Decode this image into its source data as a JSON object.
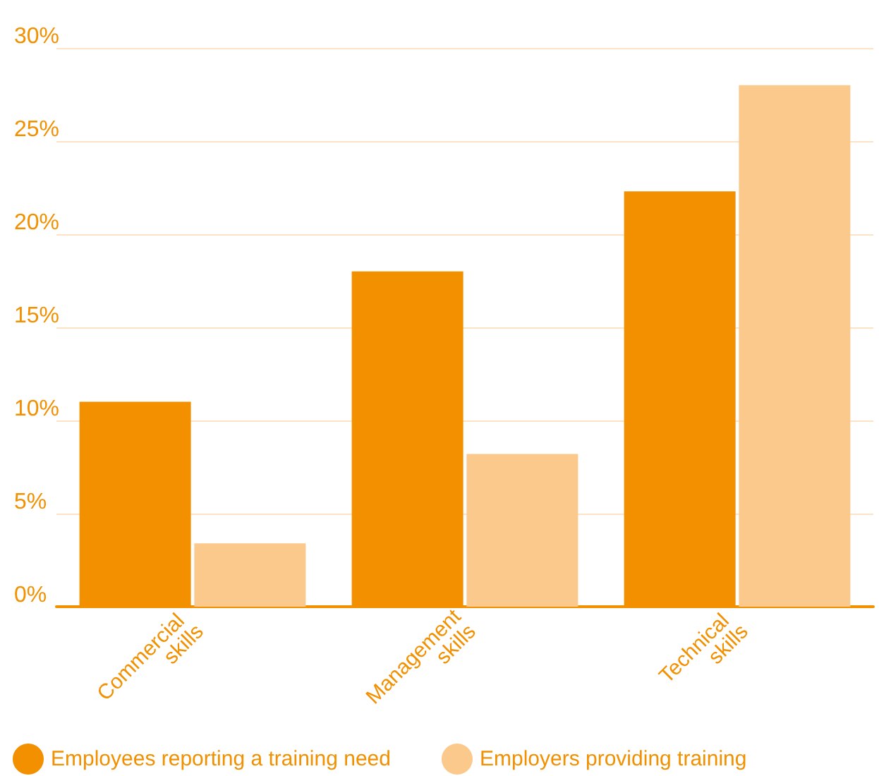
{
  "chart_data": {
    "type": "bar",
    "categories": [
      "Commercial skills",
      "Management skills",
      "Technical skills"
    ],
    "series": [
      {
        "name": "Employees reporting a training need",
        "color": "#f29000",
        "values": [
          11.0,
          18.0,
          22.3
        ]
      },
      {
        "name": "Employers providing training",
        "color": "#fbc98c",
        "values": [
          3.4,
          8.2,
          28.0
        ]
      }
    ],
    "ylim": [
      0,
      30
    ],
    "yticks": [
      {
        "value": 0,
        "label": "0%"
      },
      {
        "value": 5,
        "label": "5%"
      },
      {
        "value": 10,
        "label": "10%"
      },
      {
        "value": 15,
        "label": "15%"
      },
      {
        "value": 20,
        "label": "20%"
      },
      {
        "value": 25,
        "label": "25%"
      },
      {
        "value": 30,
        "label": "30%"
      }
    ],
    "grid": "y",
    "legend": "bottom left"
  }
}
